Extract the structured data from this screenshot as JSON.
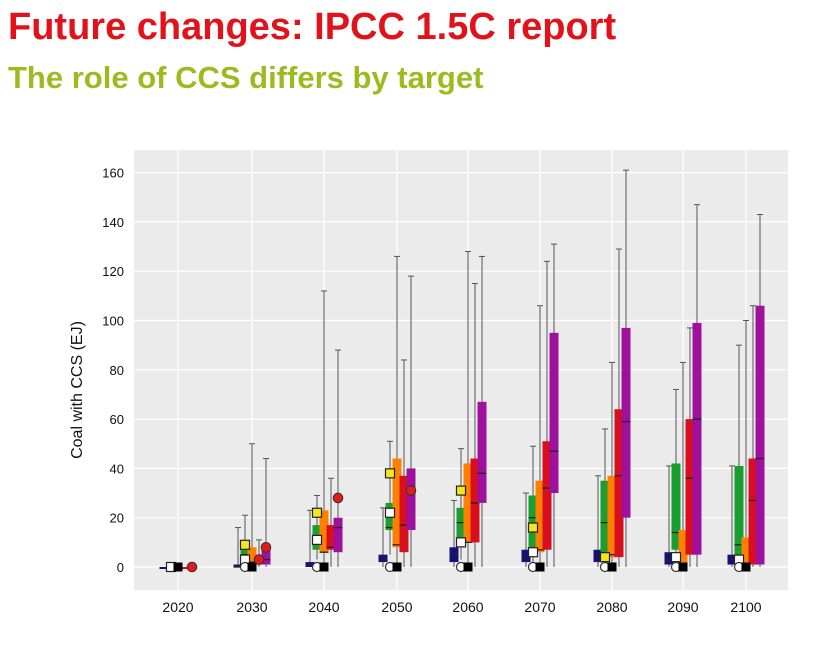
{
  "title": "Future changes: IPCC 1.5C report",
  "subtitle": "The role of CCS differs by target",
  "colors": {
    "title": "#e2121b",
    "subtitle": "#9bbb1e",
    "navy": "#14127a",
    "green": "#1a9e2f",
    "orange": "#ff8000",
    "red": "#d80f1e",
    "purple": "#a0109e",
    "panel_bg": "#ebebeb",
    "grid": "#ffffff"
  },
  "chart_data": {
    "type": "box",
    "ylabel": "Coal with CCS (EJ)",
    "xlabel": "",
    "ylim": [
      -10,
      168
    ],
    "yticks": [
      0,
      20,
      40,
      60,
      80,
      100,
      120,
      140,
      160
    ],
    "grid": true,
    "categories": [
      "2020",
      "2030",
      "2040",
      "2050",
      "2060",
      "2070",
      "2080",
      "2090",
      "2100"
    ],
    "series_colors": [
      "navy",
      "green",
      "orange",
      "red",
      "purple"
    ],
    "boxes": [
      [
        [
          0,
          0,
          0,
          0,
          0
        ],
        [
          0,
          0,
          0,
          0,
          0
        ],
        [
          0,
          0,
          0,
          0,
          0
        ],
        [
          0,
          0,
          0,
          0,
          0
        ],
        [
          0,
          0,
          0,
          0,
          0
        ]
      ],
      [
        [
          0,
          0,
          0,
          1,
          16
        ],
        [
          0,
          3,
          5,
          7,
          21
        ],
        [
          0,
          1,
          2,
          8,
          50
        ],
        [
          0,
          1,
          2,
          4,
          11
        ],
        [
          0,
          1,
          3,
          7,
          44
        ]
      ],
      [
        [
          0,
          0,
          1,
          2,
          23
        ],
        [
          3,
          7,
          12,
          17,
          29
        ],
        [
          0,
          6,
          6,
          23,
          112
        ],
        [
          0,
          7,
          8,
          17,
          36
        ],
        [
          0,
          6,
          16,
          20,
          88
        ]
      ],
      [
        [
          0,
          2,
          3,
          5,
          24
        ],
        [
          5,
          15,
          16,
          26,
          51
        ],
        [
          0,
          8,
          9,
          44,
          126
        ],
        [
          0,
          6,
          17,
          37,
          84
        ],
        [
          0,
          15,
          31,
          40,
          118
        ]
      ],
      [
        [
          0,
          2,
          5,
          8,
          27
        ],
        [
          3,
          8,
          18,
          24,
          48
        ],
        [
          0,
          10,
          10,
          42,
          128
        ],
        [
          0,
          10,
          26,
          44,
          115
        ],
        [
          0,
          26,
          38,
          67,
          126
        ]
      ],
      [
        [
          0,
          2,
          4,
          7,
          30
        ],
        [
          0,
          8,
          20,
          29,
          49
        ],
        [
          0,
          6,
          7,
          35,
          106
        ],
        [
          0,
          7,
          32,
          51,
          124
        ],
        [
          0,
          30,
          47,
          95,
          131
        ]
      ],
      [
        [
          0,
          2,
          4,
          7,
          37
        ],
        [
          0,
          5,
          18,
          35,
          56
        ],
        [
          0,
          4,
          5,
          37,
          83
        ],
        [
          0,
          4,
          37,
          64,
          129
        ],
        [
          0,
          20,
          59,
          97,
          161
        ]
      ],
      [
        [
          0,
          1,
          3,
          6,
          41
        ],
        [
          0,
          7,
          14,
          42,
          72
        ],
        [
          0,
          0,
          0,
          15,
          83
        ],
        [
          0,
          5,
          36,
          60,
          97
        ],
        [
          0,
          5,
          60,
          99,
          147
        ]
      ],
      [
        [
          0,
          1,
          3,
          5,
          41
        ],
        [
          0,
          4,
          9,
          41,
          90
        ],
        [
          0,
          1,
          1,
          12,
          100
        ],
        [
          0,
          1,
          27,
          44,
          106
        ],
        [
          0,
          1,
          44,
          106,
          143
        ]
      ]
    ],
    "markers": [
      {
        "category": "2020",
        "position": "green",
        "value": 0,
        "shape": "white-square"
      },
      {
        "category": "2020",
        "position": "orange",
        "value": 0,
        "shape": "black-square"
      },
      {
        "category": "2020",
        "position": "purple",
        "value": 0,
        "shape": "red-circle"
      },
      {
        "category": "2030",
        "position": "green",
        "value": 9,
        "shape": "yellow-square"
      },
      {
        "category": "2030",
        "position": "green",
        "value": 3,
        "shape": "white-square"
      },
      {
        "category": "2030",
        "position": "green",
        "value": 0,
        "shape": "white-circle"
      },
      {
        "category": "2030",
        "position": "orange",
        "value": 0,
        "shape": "black-square"
      },
      {
        "category": "2030",
        "position": "red",
        "value": 3,
        "shape": "red-circle"
      },
      {
        "category": "2030",
        "position": "purple",
        "value": 8,
        "shape": "red-circle"
      },
      {
        "category": "2040",
        "position": "green",
        "value": 22,
        "shape": "yellow-square"
      },
      {
        "category": "2040",
        "position": "green",
        "value": 11,
        "shape": "white-square"
      },
      {
        "category": "2040",
        "position": "green",
        "value": 0,
        "shape": "white-circle"
      },
      {
        "category": "2040",
        "position": "orange",
        "value": 0,
        "shape": "black-square"
      },
      {
        "category": "2040",
        "position": "purple",
        "value": 28,
        "shape": "red-circle"
      },
      {
        "category": "2050",
        "position": "green",
        "value": 38,
        "shape": "yellow-square"
      },
      {
        "category": "2050",
        "position": "green",
        "value": 22,
        "shape": "white-square"
      },
      {
        "category": "2050",
        "position": "green",
        "value": 0,
        "shape": "white-circle"
      },
      {
        "category": "2050",
        "position": "orange",
        "value": 0,
        "shape": "black-square"
      },
      {
        "category": "2050",
        "position": "purple",
        "value": 31,
        "shape": "red-circle"
      },
      {
        "category": "2060",
        "position": "green",
        "value": 31,
        "shape": "yellow-square"
      },
      {
        "category": "2060",
        "position": "green",
        "value": 10,
        "shape": "white-square"
      },
      {
        "category": "2060",
        "position": "green",
        "value": 0,
        "shape": "white-circle"
      },
      {
        "category": "2060",
        "position": "orange",
        "value": 0,
        "shape": "black-square"
      },
      {
        "category": "2070",
        "position": "green",
        "value": 16,
        "shape": "yellow-square"
      },
      {
        "category": "2070",
        "position": "green",
        "value": 6,
        "shape": "white-square"
      },
      {
        "category": "2070",
        "position": "green",
        "value": 0,
        "shape": "white-circle"
      },
      {
        "category": "2070",
        "position": "orange",
        "value": 0,
        "shape": "black-square"
      },
      {
        "category": "2080",
        "position": "green",
        "value": 4,
        "shape": "yellow-square"
      },
      {
        "category": "2080",
        "position": "green",
        "value": 0,
        "shape": "white-circle"
      },
      {
        "category": "2080",
        "position": "orange",
        "value": 0,
        "shape": "black-square"
      },
      {
        "category": "2090",
        "position": "green",
        "value": 4,
        "shape": "white-square"
      },
      {
        "category": "2090",
        "position": "green",
        "value": 0,
        "shape": "white-circle"
      },
      {
        "category": "2090",
        "position": "orange",
        "value": 0,
        "shape": "black-square"
      },
      {
        "category": "2100",
        "position": "green",
        "value": 3,
        "shape": "white-square"
      },
      {
        "category": "2100",
        "position": "green",
        "value": 0,
        "shape": "white-circle"
      },
      {
        "category": "2100",
        "position": "orange",
        "value": 0,
        "shape": "black-square"
      }
    ]
  }
}
